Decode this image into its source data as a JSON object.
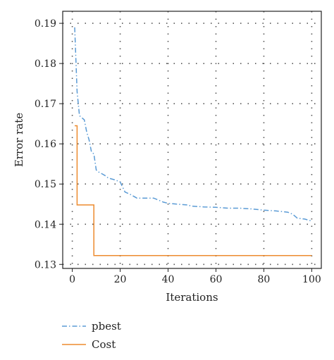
{
  "chart_data": {
    "type": "line",
    "title": "",
    "xlabel": "Iterations",
    "ylabel": "Error rate",
    "xlim": [
      -4,
      104
    ],
    "ylim": [
      0.129,
      0.193
    ],
    "xticks": [
      0,
      20,
      40,
      60,
      80,
      100
    ],
    "yticks": [
      0.13,
      0.14,
      0.15,
      0.16,
      0.17,
      0.18,
      0.19
    ],
    "xtick_labels": [
      "0",
      "20",
      "40",
      "60",
      "80",
      "100"
    ],
    "ytick_labels": [
      "0.13",
      "0.14",
      "0.15",
      "0.16",
      "0.17",
      "0.18",
      "0.19"
    ],
    "grid": true,
    "legend_position": "bottom-left, below plot",
    "series": [
      {
        "name": "pbest",
        "color": "#5b9bd5",
        "style": "dashdot",
        "x": [
          1,
          2,
          3,
          5,
          6,
          7,
          8,
          9,
          10,
          11,
          14,
          15,
          18,
          20,
          22,
          24,
          27,
          29,
          34,
          36,
          38,
          40,
          44,
          48,
          50,
          55,
          60,
          65,
          70,
          75,
          80,
          85,
          90,
          92,
          94,
          97,
          100
        ],
        "y": [
          0.189,
          0.173,
          0.167,
          0.166,
          0.163,
          0.161,
          0.158,
          0.1575,
          0.1535,
          0.153,
          0.152,
          0.1515,
          0.151,
          0.1505,
          0.148,
          0.1475,
          0.1465,
          0.1465,
          0.1465,
          0.146,
          0.1455,
          0.1452,
          0.145,
          0.1448,
          0.1445,
          0.1443,
          0.1442,
          0.144,
          0.144,
          0.1438,
          0.1435,
          0.1433,
          0.143,
          0.1425,
          0.1415,
          0.1413,
          0.1408
        ]
      },
      {
        "name": "Cost",
        "color": "#ed8b2f",
        "style": "solid",
        "step": "post",
        "x": [
          1,
          2,
          8,
          9,
          100
        ],
        "y": [
          0.1645,
          0.1448,
          0.1448,
          0.1322,
          0.1322
        ]
      }
    ]
  }
}
